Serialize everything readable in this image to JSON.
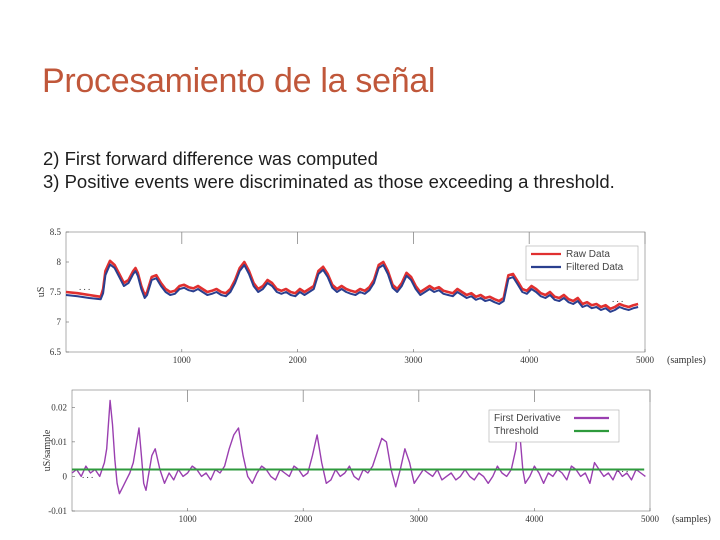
{
  "slide": {
    "title": "Procesamiento de la señal",
    "bullets": [
      "2) First forward difference was computed",
      "3) Positive events were discriminated as those exceeding a threshold."
    ]
  },
  "chart_data": [
    {
      "type": "line",
      "ylabel": "uS",
      "xlabel": "(samples)",
      "xlim": [
        0,
        5000
      ],
      "ylim": [
        6.5,
        8.5
      ],
      "xticks": [
        "1000",
        "2000",
        "3000",
        "4000",
        "5000"
      ],
      "yticks": [
        "8.5",
        "8",
        "7.5",
        "7",
        "6.5"
      ],
      "ellipsis_left": ". . .",
      "ellipsis_right": ". . .",
      "legend": "top-right",
      "colors": {
        "raw": "#e03030",
        "filtered": "#2a3f8f"
      },
      "series": [
        {
          "name": "Raw Data",
          "x": [
            0,
            100,
            200,
            300,
            320,
            340,
            380,
            420,
            460,
            500,
            540,
            580,
            600,
            620,
            650,
            680,
            700,
            740,
            780,
            820,
            860,
            900,
            940,
            980,
            1020,
            1060,
            1100,
            1140,
            1180,
            1220,
            1260,
            1300,
            1340,
            1380,
            1420,
            1460,
            1500,
            1540,
            1580,
            1620,
            1660,
            1700,
            1740,
            1780,
            1820,
            1860,
            1900,
            1940,
            1980,
            2020,
            2060,
            2100,
            2140,
            2180,
            2220,
            2260,
            2300,
            2340,
            2380,
            2420,
            2460,
            2500,
            2540,
            2580,
            2620,
            2660,
            2700,
            2740,
            2780,
            2820,
            2860,
            2900,
            2940,
            2980,
            3020,
            3060,
            3100,
            3140,
            3180,
            3220,
            3260,
            3300,
            3340,
            3380,
            3420,
            3460,
            3500,
            3540,
            3580,
            3620,
            3660,
            3700,
            3740,
            3780,
            3820,
            3860,
            3900,
            3940,
            3980,
            4020,
            4060,
            4100,
            4140,
            4180,
            4220,
            4260,
            4300,
            4340,
            4380,
            4420,
            4460,
            4500,
            4540,
            4580,
            4620,
            4660,
            4700,
            4740,
            4780,
            4820,
            4860,
            4900,
            4940
          ],
          "y": [
            7.5,
            7.48,
            7.45,
            7.42,
            7.55,
            7.85,
            8.02,
            7.95,
            7.8,
            7.65,
            7.7,
            7.85,
            7.9,
            7.82,
            7.6,
            7.45,
            7.5,
            7.75,
            7.78,
            7.65,
            7.55,
            7.5,
            7.52,
            7.6,
            7.62,
            7.58,
            7.56,
            7.6,
            7.55,
            7.5,
            7.52,
            7.55,
            7.5,
            7.48,
            7.55,
            7.7,
            7.9,
            8.0,
            7.85,
            7.65,
            7.55,
            7.6,
            7.7,
            7.65,
            7.55,
            7.52,
            7.55,
            7.5,
            7.48,
            7.55,
            7.5,
            7.55,
            7.6,
            7.85,
            7.92,
            7.8,
            7.62,
            7.55,
            7.6,
            7.55,
            7.52,
            7.5,
            7.55,
            7.52,
            7.58,
            7.7,
            7.95,
            8.0,
            7.85,
            7.62,
            7.55,
            7.65,
            7.82,
            7.75,
            7.6,
            7.5,
            7.55,
            7.6,
            7.55,
            7.58,
            7.52,
            7.5,
            7.48,
            7.55,
            7.5,
            7.45,
            7.48,
            7.42,
            7.45,
            7.4,
            7.42,
            7.38,
            7.35,
            7.4,
            7.78,
            7.8,
            7.68,
            7.55,
            7.52,
            7.6,
            7.55,
            7.48,
            7.45,
            7.5,
            7.42,
            7.4,
            7.45,
            7.38,
            7.35,
            7.4,
            7.3,
            7.33,
            7.28,
            7.3,
            7.25,
            7.28,
            7.22,
            7.25,
            7.3,
            7.27,
            7.25,
            7.28,
            7.3
          ]
        },
        {
          "name": "Filtered Data",
          "x": [
            0,
            100,
            200,
            300,
            320,
            340,
            380,
            420,
            460,
            500,
            540,
            580,
            600,
            620,
            650,
            680,
            700,
            740,
            780,
            820,
            860,
            900,
            940,
            980,
            1020,
            1060,
            1100,
            1140,
            1180,
            1220,
            1260,
            1300,
            1340,
            1380,
            1420,
            1460,
            1500,
            1540,
            1580,
            1620,
            1660,
            1700,
            1740,
            1780,
            1820,
            1860,
            1900,
            1940,
            1980,
            2020,
            2060,
            2100,
            2140,
            2180,
            2220,
            2260,
            2300,
            2340,
            2380,
            2420,
            2460,
            2500,
            2540,
            2580,
            2620,
            2660,
            2700,
            2740,
            2780,
            2820,
            2860,
            2900,
            2940,
            2980,
            3020,
            3060,
            3100,
            3140,
            3180,
            3220,
            3260,
            3300,
            3340,
            3380,
            3420,
            3460,
            3500,
            3540,
            3580,
            3620,
            3660,
            3700,
            3740,
            3780,
            3820,
            3860,
            3900,
            3940,
            3980,
            4020,
            4060,
            4100,
            4140,
            4180,
            4220,
            4260,
            4300,
            4340,
            4380,
            4420,
            4460,
            4500,
            4540,
            4580,
            4620,
            4660,
            4700,
            4740,
            4780,
            4820,
            4860,
            4900,
            4940
          ],
          "y": [
            7.45,
            7.43,
            7.4,
            7.38,
            7.48,
            7.78,
            7.96,
            7.9,
            7.75,
            7.6,
            7.65,
            7.8,
            7.85,
            7.77,
            7.55,
            7.4,
            7.45,
            7.7,
            7.73,
            7.6,
            7.5,
            7.45,
            7.47,
            7.55,
            7.57,
            7.53,
            7.51,
            7.55,
            7.5,
            7.45,
            7.47,
            7.5,
            7.45,
            7.43,
            7.5,
            7.65,
            7.85,
            7.95,
            7.8,
            7.6,
            7.5,
            7.55,
            7.65,
            7.6,
            7.5,
            7.47,
            7.5,
            7.45,
            7.43,
            7.5,
            7.45,
            7.5,
            7.55,
            7.8,
            7.87,
            7.75,
            7.57,
            7.5,
            7.55,
            7.5,
            7.47,
            7.45,
            7.5,
            7.47,
            7.53,
            7.65,
            7.9,
            7.95,
            7.8,
            7.57,
            7.5,
            7.6,
            7.77,
            7.7,
            7.55,
            7.45,
            7.5,
            7.55,
            7.5,
            7.53,
            7.47,
            7.45,
            7.43,
            7.5,
            7.45,
            7.4,
            7.43,
            7.37,
            7.4,
            7.35,
            7.37,
            7.33,
            7.3,
            7.35,
            7.72,
            7.75,
            7.63,
            7.5,
            7.47,
            7.55,
            7.5,
            7.43,
            7.4,
            7.45,
            7.37,
            7.35,
            7.4,
            7.33,
            7.3,
            7.35,
            7.25,
            7.28,
            7.23,
            7.25,
            7.2,
            7.23,
            7.17,
            7.2,
            7.25,
            7.22,
            7.2,
            7.23,
            7.25
          ]
        }
      ]
    },
    {
      "type": "line",
      "ylabel": "uS/sample",
      "xlabel": "(samples)",
      "xlim": [
        0,
        5000
      ],
      "ylim": [
        -0.01,
        0.025
      ],
      "xticks": [
        "1000",
        "2000",
        "3000",
        "4000",
        "5000"
      ],
      "yticks": [
        "0.02",
        "0.01",
        "0",
        "-0.01"
      ],
      "ellipsis_left": ". . .",
      "ellipsis_right": ". . .",
      "legend": "top-right",
      "colors": {
        "derivative": "#9a3fb0",
        "threshold": "#2e9a3c"
      },
      "threshold_value": 0.002,
      "series": [
        {
          "name": "First Derivative",
          "x": [
            0,
            40,
            80,
            120,
            160,
            200,
            240,
            280,
            300,
            330,
            350,
            370,
            390,
            410,
            440,
            470,
            500,
            530,
            560,
            580,
            600,
            620,
            640,
            660,
            690,
            720,
            760,
            800,
            840,
            880,
            920,
            960,
            1000,
            1040,
            1080,
            1120,
            1160,
            1200,
            1240,
            1280,
            1320,
            1360,
            1400,
            1440,
            1480,
            1520,
            1560,
            1600,
            1640,
            1680,
            1720,
            1760,
            1800,
            1840,
            1880,
            1920,
            1960,
            2000,
            2040,
            2080,
            2120,
            2160,
            2200,
            2240,
            2280,
            2320,
            2360,
            2400,
            2440,
            2480,
            2520,
            2560,
            2600,
            2640,
            2680,
            2720,
            2760,
            2800,
            2840,
            2880,
            2920,
            2960,
            3000,
            3040,
            3080,
            3120,
            3160,
            3200,
            3240,
            3280,
            3320,
            3360,
            3400,
            3440,
            3480,
            3520,
            3560,
            3600,
            3640,
            3680,
            3720,
            3760,
            3800,
            3840,
            3860,
            3880,
            3900,
            3920,
            3960,
            4000,
            4040,
            4080,
            4120,
            4160,
            4200,
            4240,
            4280,
            4320,
            4360,
            4400,
            4440,
            4480,
            4520,
            4560,
            4600,
            4640,
            4680,
            4720,
            4760,
            4800,
            4840,
            4880,
            4920,
            4960
          ],
          "y": [
            0.001,
            0.002,
            0.0,
            0.003,
            0.001,
            0.002,
            0.0,
            0.004,
            0.008,
            0.022,
            0.015,
            0.005,
            -0.002,
            -0.005,
            -0.003,
            -0.001,
            0.001,
            0.004,
            0.01,
            0.014,
            0.006,
            -0.002,
            -0.004,
            0.0,
            0.006,
            0.008,
            0.002,
            -0.002,
            0.001,
            -0.001,
            0.002,
            0.0,
            0.001,
            0.003,
            0.002,
            0.0,
            0.001,
            -0.001,
            0.002,
            0.001,
            0.003,
            0.008,
            0.012,
            0.014,
            0.006,
            0.0,
            -0.002,
            0.001,
            0.003,
            0.002,
            0.0,
            -0.001,
            0.002,
            0.001,
            0.0,
            0.003,
            0.002,
            0.0,
            0.001,
            0.006,
            0.012,
            0.004,
            -0.002,
            -0.001,
            0.002,
            0.0,
            0.001,
            0.003,
            0.0,
            -0.001,
            0.002,
            0.001,
            0.003,
            0.007,
            0.011,
            0.01,
            0.002,
            -0.003,
            0.002,
            0.008,
            0.004,
            -0.002,
            0.0,
            0.002,
            0.001,
            0.0,
            0.002,
            -0.001,
            0.0,
            0.001,
            -0.001,
            0.0,
            0.002,
            0.0,
            -0.001,
            0.001,
            0.0,
            -0.002,
            0.0,
            0.003,
            0.001,
            0.0,
            0.002,
            0.008,
            0.018,
            0.01,
            0.002,
            -0.002,
            0.0,
            0.003,
            0.001,
            -0.002,
            0.001,
            0.0,
            0.002,
            0.001,
            -0.001,
            0.003,
            0.002,
            0.0,
            0.001,
            -0.002,
            0.004,
            0.002,
            0.0,
            0.001,
            -0.001,
            0.002,
            0.0,
            0.001,
            -0.001,
            0.002,
            0.001,
            0.0
          ]
        },
        {
          "name": "Threshold",
          "x": [
            0,
            4950
          ],
          "y": [
            0.002,
            0.002
          ]
        }
      ]
    }
  ]
}
